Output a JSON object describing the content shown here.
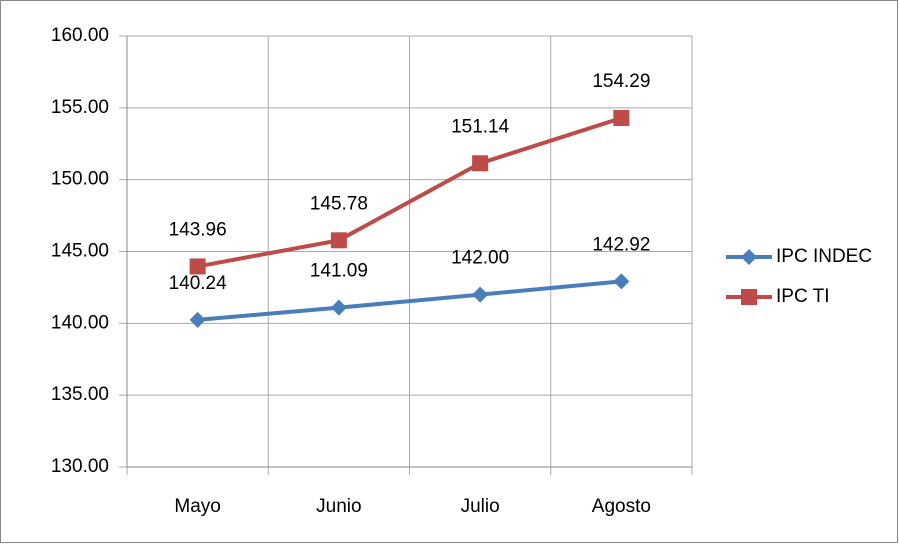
{
  "chart_data": {
    "type": "line",
    "categories": [
      "Mayo",
      "Junio",
      "Julio",
      "Agosto"
    ],
    "series": [
      {
        "name": "IPC INDEC",
        "color": "#4a7ebb",
        "marker": "diamond",
        "values": [
          140.24,
          141.09,
          142,
          142.92
        ],
        "value_labels": [
          "140.24",
          "141.09",
          "142.00",
          "142.92"
        ]
      },
      {
        "name": "IPC TI",
        "color": "#be4b48",
        "marker": "square",
        "values": [
          143.96,
          145.78,
          151.14,
          154.29
        ],
        "value_labels": [
          "143.96",
          "145.78",
          "151.14",
          "154.29"
        ]
      }
    ],
    "ylim": [
      130,
      160
    ],
    "yticks": [
      {
        "value": 130,
        "label": "130.00"
      },
      {
        "value": 135,
        "label": "135.00"
      },
      {
        "value": 140,
        "label": "140.00"
      },
      {
        "value": 145,
        "label": "145.00"
      },
      {
        "value": 150,
        "label": "150.00"
      },
      {
        "value": 155,
        "label": "155.00"
      },
      {
        "value": 160,
        "label": "160.00"
      }
    ],
    "grid": true,
    "legend": "right"
  }
}
